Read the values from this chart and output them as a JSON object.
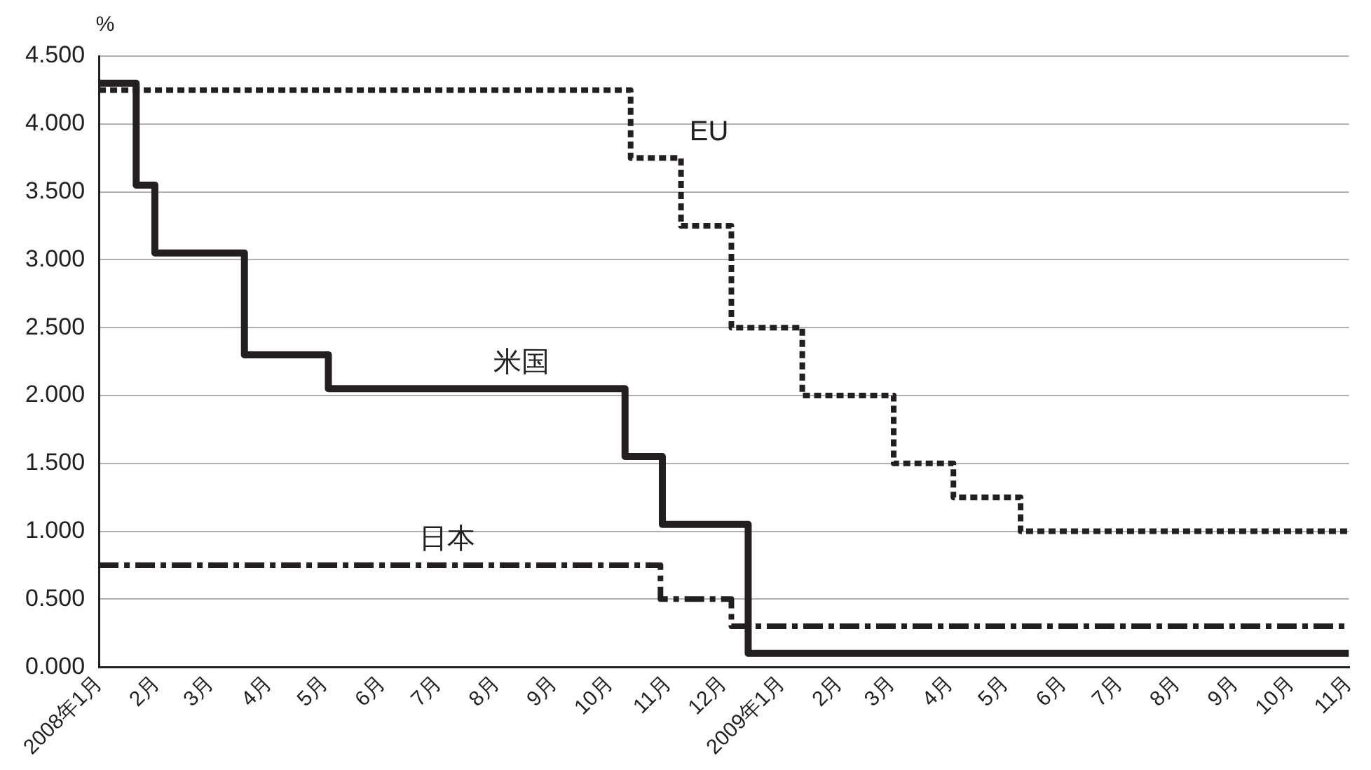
{
  "chart_data": {
    "type": "step",
    "ylabel": "%",
    "series": [
      {
        "name": "米国",
        "color": "#231f20",
        "line_style": "solid",
        "x": [
          "2008-01-01",
          "2008-01-21",
          "2008-01-31",
          "2008-03-19",
          "2008-05-03",
          "2008-10-09",
          "2008-10-29",
          "2008-12-14",
          "2009-11-01"
        ],
        "values": [
          4.3,
          3.55,
          3.05,
          2.3,
          2.05,
          1.55,
          1.05,
          0.1,
          0.1
        ]
      },
      {
        "name": "EU",
        "color": "#231f20",
        "line_style": "dotted",
        "x": [
          "2008-01-01",
          "2008-10-12",
          "2008-11-08",
          "2008-12-05",
          "2009-01-12",
          "2009-03-02",
          "2009-04-03",
          "2009-05-09",
          "2009-11-01"
        ],
        "values": [
          4.25,
          3.75,
          3.25,
          2.5,
          2.0,
          1.5,
          1.25,
          1.0,
          1.0
        ]
      },
      {
        "name": "日本",
        "color": "#231f20",
        "line_style": "dashed",
        "x": [
          "2008-01-01",
          "2008-10-28",
          "2008-12-05",
          "2009-11-01"
        ],
        "values": [
          0.75,
          0.5,
          0.3,
          0.3
        ]
      }
    ],
    "xlim": [
      "2008-01-01",
      "2009-11-01"
    ],
    "xticks": [
      {
        "value": "2008-01-01",
        "label": "2008年1月"
      },
      {
        "value": "2008-02-01",
        "label": "2月"
      },
      {
        "value": "2008-03-01",
        "label": "3月"
      },
      {
        "value": "2008-04-01",
        "label": "4月"
      },
      {
        "value": "2008-05-01",
        "label": "5月"
      },
      {
        "value": "2008-06-01",
        "label": "6月"
      },
      {
        "value": "2008-07-01",
        "label": "7月"
      },
      {
        "value": "2008-08-01",
        "label": "8月"
      },
      {
        "value": "2008-09-01",
        "label": "9月"
      },
      {
        "value": "2008-10-01",
        "label": "10月"
      },
      {
        "value": "2008-11-01",
        "label": "11月"
      },
      {
        "value": "2008-12-01",
        "label": "12月"
      },
      {
        "value": "2009-01-01",
        "label": "2009年1月"
      },
      {
        "value": "2009-02-01",
        "label": "2月"
      },
      {
        "value": "2009-03-01",
        "label": "3月"
      },
      {
        "value": "2009-04-01",
        "label": "4月"
      },
      {
        "value": "2009-05-01",
        "label": "5月"
      },
      {
        "value": "2009-06-01",
        "label": "6月"
      },
      {
        "value": "2009-07-01",
        "label": "7月"
      },
      {
        "value": "2009-08-01",
        "label": "8月"
      },
      {
        "value": "2009-09-01",
        "label": "9月"
      },
      {
        "value": "2009-10-01",
        "label": "10月"
      },
      {
        "value": "2009-11-01",
        "label": "11月"
      }
    ],
    "ylim": [
      0,
      4.5
    ],
    "yticks": [
      {
        "value": 0,
        "label": "0.000"
      },
      {
        "value": 0.5,
        "label": "0.500"
      },
      {
        "value": 1,
        "label": "1.000"
      },
      {
        "value": 1.5,
        "label": "1.500"
      },
      {
        "value": 2,
        "label": "2.000"
      },
      {
        "value": 2.5,
        "label": "2.500"
      },
      {
        "value": 3,
        "label": "3.000"
      },
      {
        "value": 3.5,
        "label": "3.500"
      },
      {
        "value": 4,
        "label": "4.000"
      },
      {
        "value": 4.5,
        "label": "4.500"
      }
    ],
    "grid": "y",
    "legend": false
  }
}
